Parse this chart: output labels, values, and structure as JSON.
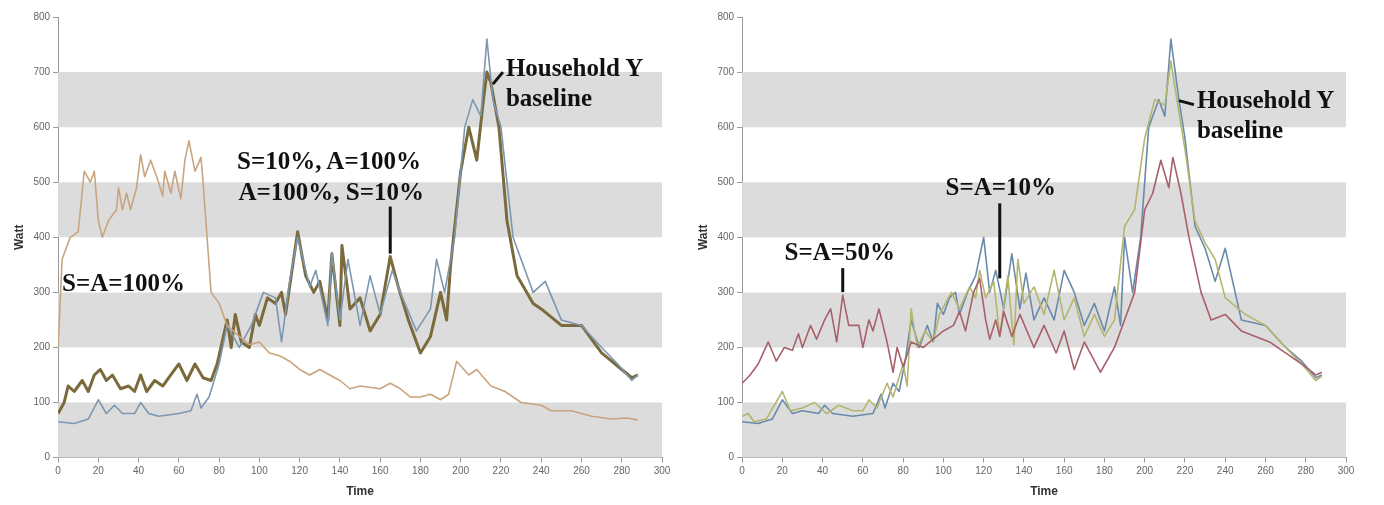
{
  "chart_data": [
    {
      "type": "line",
      "xlabel": "Time",
      "ylabel": "Watt",
      "xlim": [
        0,
        300
      ],
      "xticks": [
        0,
        20,
        40,
        60,
        80,
        100,
        120,
        140,
        160,
        180,
        200,
        220,
        240,
        260,
        280,
        300
      ],
      "ylim": [
        0,
        800
      ],
      "yticks": [
        0,
        100,
        200,
        300,
        400,
        500,
        600,
        700,
        800
      ],
      "bands": [
        {
          "axis": "y",
          "from": 0,
          "to": 100,
          "color": "#dcdcdc"
        },
        {
          "axis": "y",
          "from": 200,
          "to": 300,
          "color": "#dcdcdc"
        },
        {
          "axis": "y",
          "from": 400,
          "to": 500,
          "color": "#dcdcdc"
        },
        {
          "axis": "y",
          "from": 600,
          "to": 700,
          "color": "#dcdcdc"
        }
      ],
      "annotations": [
        "S=A=100%",
        "S=10%, A=100%",
        {
          "text": "A=100%, S=10%",
          "x": 165,
          "y": 365
        },
        {
          "text": "Household Y baseline",
          "x": 215,
          "y": 680
        }
      ],
      "series": [
        {
          "color": "#c9a47e",
          "x": [
            0,
            2,
            6,
            10,
            13,
            16,
            18,
            20,
            22,
            25,
            29,
            30,
            32,
            34,
            36,
            39,
            41,
            43,
            46,
            49,
            52,
            53,
            56,
            58,
            61,
            63,
            65,
            68,
            71,
            72,
            74,
            76,
            80,
            84,
            90,
            95,
            100,
            105,
            110,
            115,
            120,
            125,
            130,
            135,
            140,
            145,
            150,
            160,
            165,
            170,
            175,
            180,
            185,
            190,
            194,
            198,
            204,
            208,
            215,
            222,
            230,
            240,
            245,
            255,
            265,
            275,
            283,
            288
          ],
          "values": [
            200,
            360,
            400,
            410,
            520,
            500,
            520,
            430,
            400,
            430,
            450,
            490,
            450,
            480,
            450,
            490,
            550,
            510,
            540,
            510,
            475,
            520,
            480,
            520,
            470,
            540,
            575,
            520,
            545,
            500,
            400,
            300,
            280,
            240,
            220,
            205,
            210,
            190,
            185,
            175,
            160,
            150,
            160,
            150,
            140,
            125,
            130,
            125,
            135,
            125,
            110,
            110,
            115,
            105,
            115,
            175,
            150,
            160,
            130,
            120,
            100,
            95,
            85,
            85,
            75,
            70,
            72,
            68
          ]
        },
        {
          "color": "#7c97b0",
          "x": [
            0,
            8,
            15,
            20,
            24,
            28,
            32,
            38,
            41,
            45,
            50,
            60,
            66,
            69,
            71,
            75,
            80,
            84,
            90,
            96,
            102,
            108,
            111,
            115,
            119,
            125,
            128,
            134,
            136,
            140,
            144,
            150,
            155,
            160,
            166,
            170,
            178,
            185,
            188,
            192,
            197,
            202,
            206,
            210,
            213,
            216,
            220,
            226,
            230,
            236,
            242,
            250,
            260,
            270,
            278,
            285,
            288
          ],
          "values": [
            65,
            62,
            70,
            105,
            80,
            95,
            80,
            80,
            100,
            80,
            75,
            80,
            85,
            115,
            90,
            110,
            170,
            240,
            200,
            240,
            300,
            290,
            210,
            320,
            400,
            310,
            340,
            240,
            370,
            250,
            360,
            240,
            330,
            260,
            340,
            300,
            230,
            270,
            360,
            300,
            400,
            600,
            650,
            620,
            760,
            650,
            600,
            400,
            360,
            300,
            320,
            250,
            240,
            200,
            170,
            140,
            150
          ]
        },
        {
          "color": "#7a6a3c",
          "x": [
            0,
            3,
            5,
            8,
            12,
            15,
            18,
            21,
            24,
            27,
            31,
            35,
            38,
            41,
            44,
            48,
            52,
            56,
            60,
            64,
            68,
            72,
            76,
            79,
            84,
            86,
            88,
            91,
            95,
            98,
            100,
            104,
            108,
            111,
            113,
            115,
            119,
            123,
            127,
            130,
            134,
            136,
            140,
            141,
            145,
            150,
            155,
            160,
            165,
            169,
            174,
            180,
            185,
            190,
            193,
            195,
            200,
            204,
            208,
            211,
            213,
            215,
            219,
            223,
            228,
            236,
            240,
            250,
            260,
            270,
            280,
            285,
            288
          ],
          "values": [
            80,
            100,
            130,
            120,
            140,
            120,
            150,
            160,
            140,
            150,
            125,
            130,
            120,
            150,
            120,
            140,
            130,
            150,
            170,
            140,
            170,
            145,
            140,
            170,
            250,
            200,
            260,
            210,
            200,
            260,
            240,
            290,
            280,
            300,
            260,
            310,
            410,
            330,
            300,
            320,
            250,
            370,
            240,
            385,
            270,
            290,
            230,
            260,
            365,
            310,
            250,
            190,
            220,
            300,
            250,
            350,
            520,
            600,
            540,
            640,
            700,
            680,
            600,
            430,
            330,
            280,
            270,
            240,
            240,
            190,
            160,
            145,
            150
          ]
        }
      ]
    },
    {
      "type": "line",
      "xlabel": "Time",
      "ylabel": "Watt",
      "xlim": [
        0,
        300
      ],
      "xticks": [
        0,
        20,
        40,
        60,
        80,
        100,
        120,
        140,
        160,
        180,
        200,
        220,
        240,
        260,
        280,
        300
      ],
      "ylim": [
        0,
        800
      ],
      "yticks": [
        0,
        100,
        200,
        300,
        400,
        500,
        600,
        700,
        800
      ],
      "bands": [
        {
          "axis": "y",
          "from": 0,
          "to": 100,
          "color": "#dcdcdc"
        },
        {
          "axis": "y",
          "from": 200,
          "to": 300,
          "color": "#dcdcdc"
        },
        {
          "axis": "y",
          "from": 400,
          "to": 500,
          "color": "#dcdcdc"
        },
        {
          "axis": "y",
          "from": 600,
          "to": 700,
          "color": "#dcdcdc"
        }
      ],
      "annotations": [
        {
          "text": "S=A=50%",
          "x": 50,
          "y": 295
        },
        {
          "text": "S=A=10%",
          "x": 128,
          "y": 320
        },
        {
          "text": "Household Y baseline",
          "x": 216,
          "y": 650
        }
      ],
      "series": [
        {
          "color": "#a8606a",
          "x": [
            0,
            4,
            8,
            13,
            17,
            21,
            25,
            28,
            30,
            34,
            37,
            41,
            44,
            47,
            50,
            53,
            58,
            60,
            63,
            65,
            68,
            72,
            75,
            77,
            80,
            84,
            90,
            95,
            100,
            105,
            108,
            111,
            115,
            118,
            121,
            123,
            126,
            128,
            130,
            134,
            138,
            145,
            150,
            156,
            160,
            165,
            170,
            178,
            185,
            190,
            195,
            200,
            204,
            208,
            212,
            214,
            218,
            222,
            228,
            233,
            240,
            248,
            255,
            262,
            270,
            278,
            285,
            288
          ],
          "values": [
            135,
            150,
            170,
            210,
            175,
            200,
            195,
            225,
            200,
            240,
            215,
            250,
            270,
            210,
            295,
            240,
            240,
            200,
            250,
            230,
            270,
            210,
            155,
            200,
            165,
            210,
            200,
            215,
            230,
            240,
            265,
            230,
            300,
            325,
            250,
            215,
            250,
            220,
            265,
            220,
            260,
            200,
            240,
            190,
            230,
            160,
            210,
            155,
            200,
            250,
            300,
            450,
            480,
            540,
            490,
            545,
            480,
            400,
            300,
            250,
            260,
            230,
            220,
            210,
            190,
            170,
            150,
            155
          ]
        },
        {
          "color": "#b3b66c",
          "x": [
            0,
            3,
            6,
            12,
            20,
            24,
            30,
            36,
            42,
            48,
            55,
            60,
            63,
            67,
            72,
            75,
            80,
            82,
            84,
            87,
            91,
            95,
            98,
            104,
            108,
            113,
            116,
            118,
            121,
            125,
            128,
            132,
            135,
            137,
            140,
            145,
            150,
            155,
            160,
            165,
            170,
            175,
            180,
            185,
            190,
            195,
            200,
            205,
            210,
            213,
            216,
            220,
            225,
            230,
            235,
            240,
            250,
            260,
            270,
            278,
            285,
            288
          ],
          "values": [
            75,
            80,
            65,
            70,
            120,
            85,
            90,
            100,
            80,
            95,
            85,
            85,
            105,
            90,
            135,
            110,
            170,
            130,
            270,
            200,
            230,
            210,
            260,
            300,
            270,
            310,
            290,
            340,
            290,
            320,
            220,
            330,
            205,
            360,
            280,
            310,
            260,
            340,
            250,
            290,
            220,
            260,
            220,
            250,
            420,
            450,
            580,
            650,
            640,
            720,
            650,
            560,
            430,
            390,
            360,
            290,
            260,
            240,
            200,
            170,
            140,
            148
          ]
        },
        {
          "color": "#6a8aab",
          "x": [
            0,
            8,
            15,
            20,
            25,
            30,
            38,
            41,
            45,
            55,
            65,
            69,
            71,
            75,
            78,
            81,
            84,
            88,
            92,
            95,
            97,
            100,
            103,
            106,
            108,
            112,
            116,
            120,
            123,
            126,
            130,
            134,
            138,
            141,
            145,
            150,
            155,
            160,
            165,
            170,
            175,
            180,
            185,
            188,
            190,
            194,
            198,
            202,
            207,
            210,
            213,
            217,
            220,
            225,
            230,
            235,
            240,
            248,
            260,
            270,
            278,
            285,
            288
          ],
          "values": [
            65,
            62,
            70,
            105,
            80,
            85,
            80,
            95,
            80,
            75,
            80,
            115,
            90,
            135,
            120,
            175,
            250,
            200,
            240,
            210,
            280,
            260,
            290,
            300,
            260,
            300,
            330,
            400,
            300,
            340,
            270,
            370,
            270,
            335,
            250,
            290,
            250,
            340,
            300,
            240,
            280,
            230,
            310,
            240,
            400,
            300,
            400,
            600,
            650,
            620,
            760,
            650,
            580,
            420,
            380,
            320,
            380,
            250,
            240,
            200,
            175,
            145,
            150
          ]
        }
      ]
    }
  ]
}
